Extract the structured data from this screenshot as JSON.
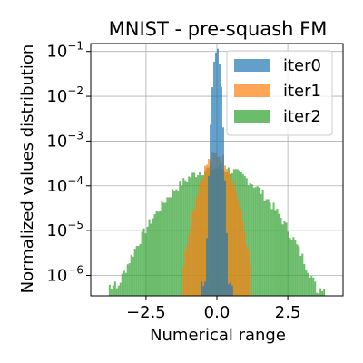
{
  "chart_data": {
    "type": "histogram",
    "title": "MNIST - pre-squash FM",
    "xlabel": "Numerical range",
    "ylabel": "Normalized values distribution",
    "xlim": [
      -4.45,
      4.45
    ],
    "ylim": [
      3.5e-07,
      0.15
    ],
    "yscale": "log",
    "grid": true,
    "legend": {
      "placement": "top-right",
      "alpha": 0.7
    },
    "x_ticks": [
      -2.5,
      0.0,
      2.5
    ],
    "x_tick_labels": [
      "−2.5",
      "0.0",
      "2.5"
    ],
    "y_ticks": [
      1e-06,
      1e-05,
      0.0001,
      0.001,
      0.01,
      0.1
    ],
    "y_tick_labels": [
      {
        "base": "10",
        "exp": "−6"
      },
      {
        "base": "10",
        "exp": "−5"
      },
      {
        "base": "10",
        "exp": "−4"
      },
      {
        "base": "10",
        "exp": "−3"
      },
      {
        "base": "10",
        "exp": "−2"
      },
      {
        "base": "10",
        "exp": "−1"
      }
    ],
    "series": [
      {
        "name": "iter2",
        "color": "#2ca02c",
        "range": [
          -3.8,
          3.8
        ],
        "peak": 0.00025,
        "sigma": 1.0
      },
      {
        "name": "iter1",
        "color": "#ff7f0e",
        "range": [
          -1.2,
          1.2
        ],
        "peak": 0.0005,
        "sigma": 0.35
      },
      {
        "name": "iter0",
        "color": "#1f77b4",
        "range": [
          -0.6,
          0.6
        ],
        "peak": 0.1,
        "sigma": 0.08
      }
    ],
    "legend_order": [
      "iter0",
      "iter1",
      "iter2"
    ]
  }
}
